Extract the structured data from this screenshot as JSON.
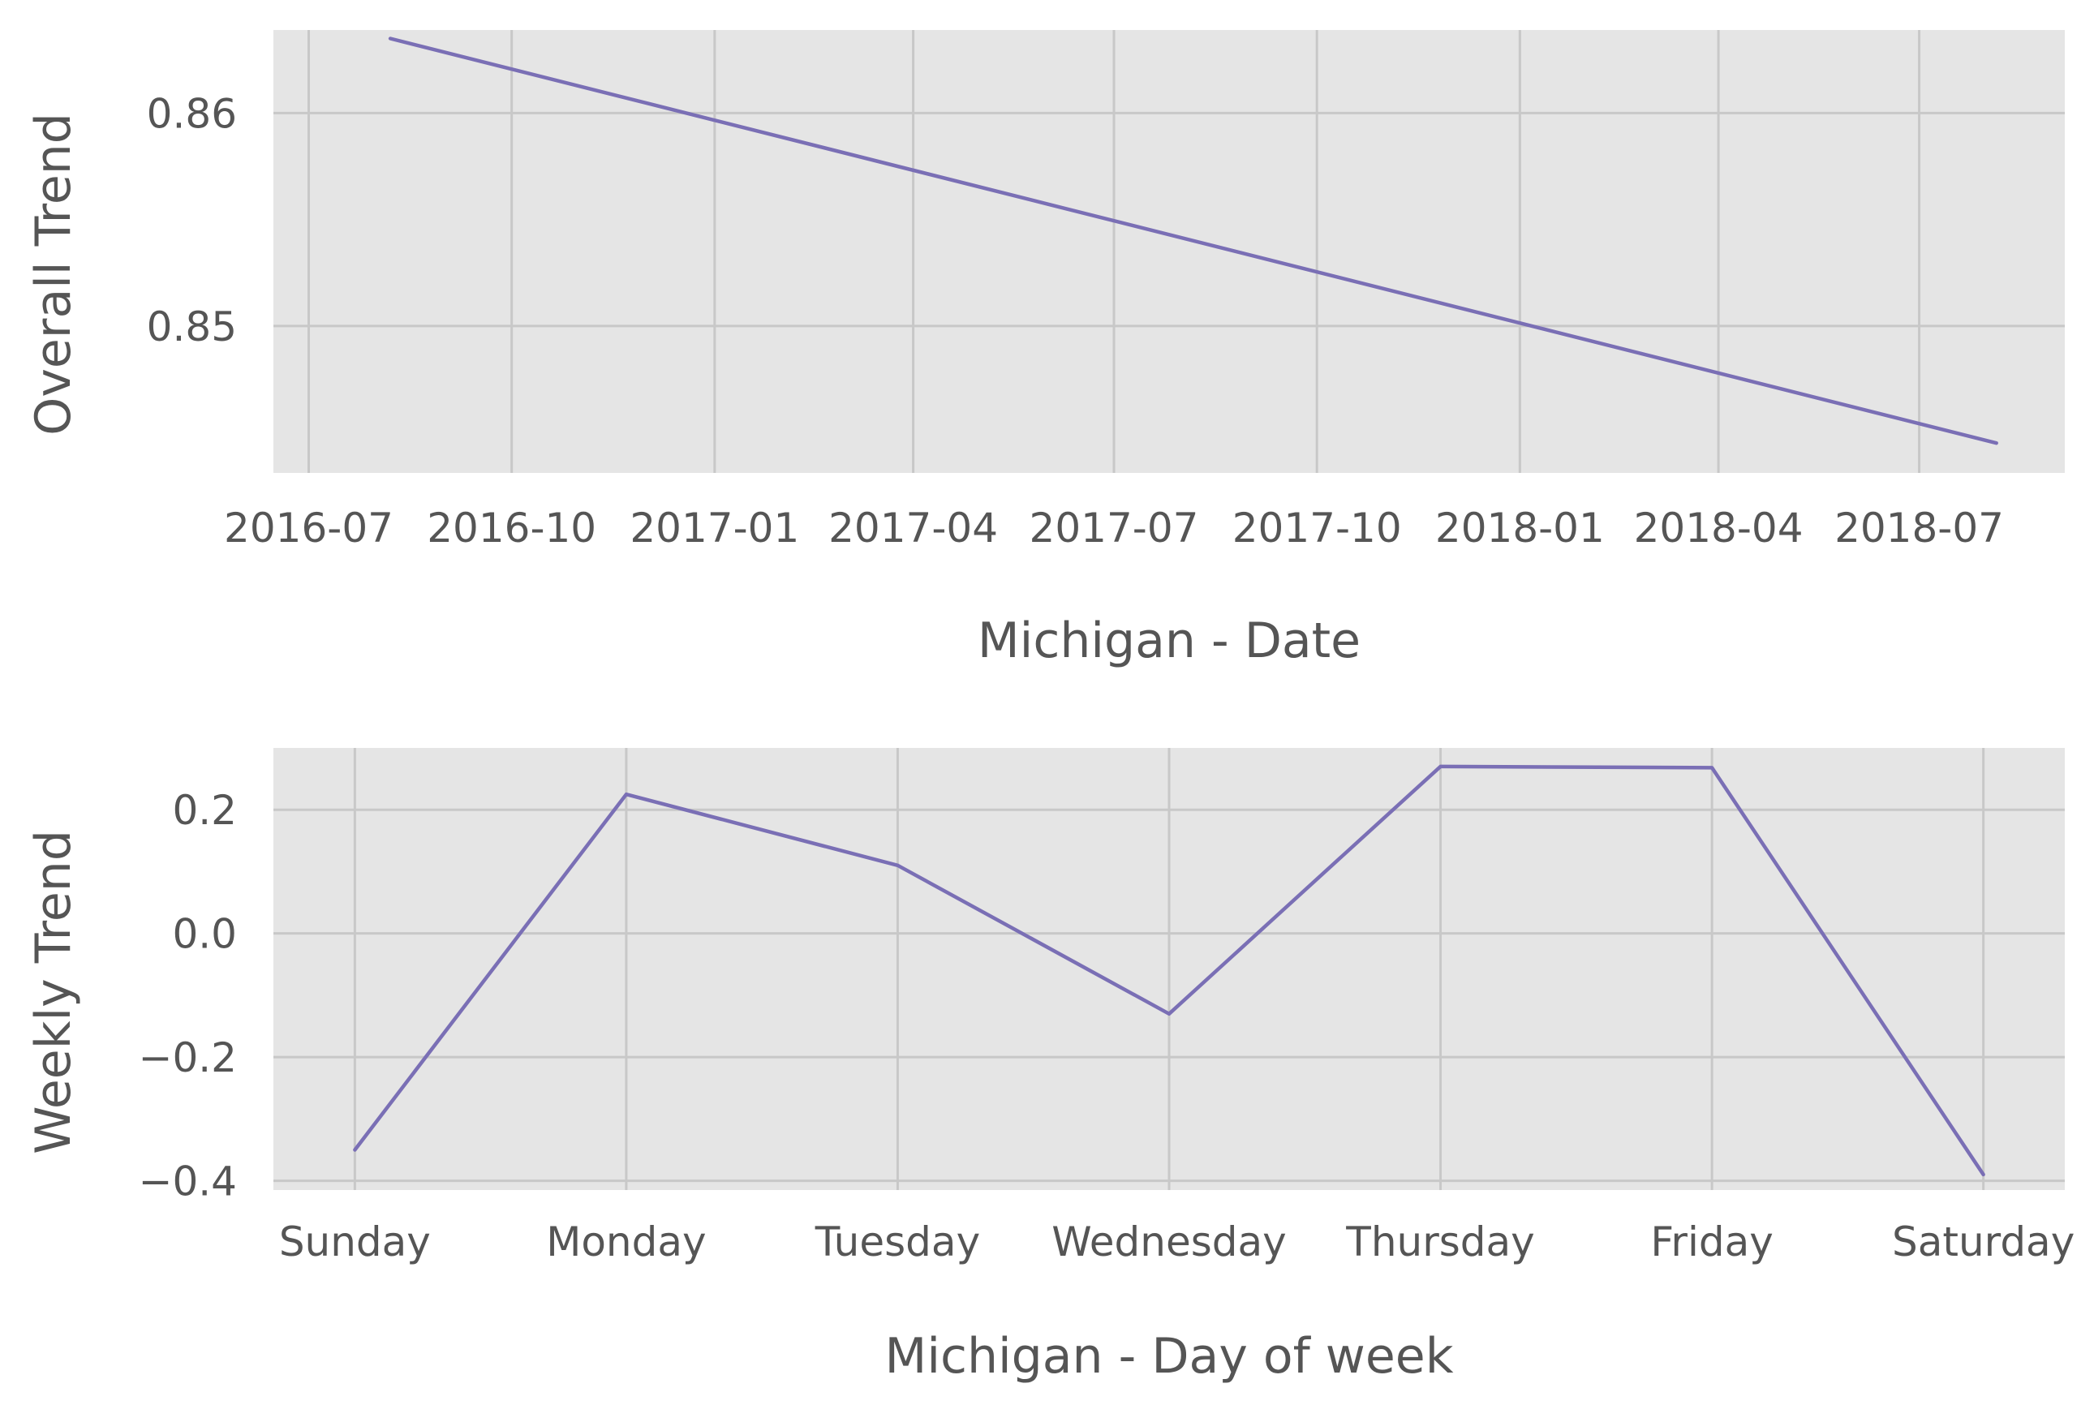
{
  "chart_data": [
    {
      "type": "line",
      "xlabel": "Michigan - Date",
      "ylabel": "Overall Trend",
      "x_axis": "date",
      "xlim": [
        "2016-06-15",
        "2018-09-05"
      ],
      "ylim": [
        0.8431,
        0.8639
      ],
      "xticks": [
        "2016-07",
        "2016-10",
        "2017-01",
        "2017-04",
        "2017-07",
        "2017-10",
        "2018-01",
        "2018-04",
        "2018-07"
      ],
      "xtick_dates": [
        "2016-07-01",
        "2016-10-01",
        "2017-01-01",
        "2017-04-01",
        "2017-07-01",
        "2017-10-01",
        "2018-01-01",
        "2018-04-01",
        "2018-07-01"
      ],
      "yticks": [
        0.85,
        0.86
      ],
      "ytick_labels": [
        "0.85",
        "0.86"
      ],
      "grid": true,
      "series": [
        {
          "color": "#7a6fb5",
          "x": [
            "2016-08-07",
            "2018-08-05"
          ],
          "y": [
            0.8635,
            0.8445
          ]
        }
      ]
    },
    {
      "type": "line",
      "xlabel": "Michigan - Day of week",
      "ylabel": "Weekly Trend",
      "categories": [
        "Sunday",
        "Monday",
        "Tuesday",
        "Wednesday",
        "Thursday",
        "Friday",
        "Saturday"
      ],
      "ylim": [
        -0.415,
        0.3
      ],
      "yticks": [
        -0.4,
        -0.2,
        0.0,
        0.2
      ],
      "ytick_labels": [
        "−0.4",
        "−0.2",
        "0.0",
        "0.2"
      ],
      "grid": true,
      "series": [
        {
          "color": "#7a6fb5",
          "values": [
            -0.35,
            0.225,
            0.11,
            -0.13,
            0.27,
            0.268,
            -0.39
          ]
        }
      ]
    }
  ]
}
